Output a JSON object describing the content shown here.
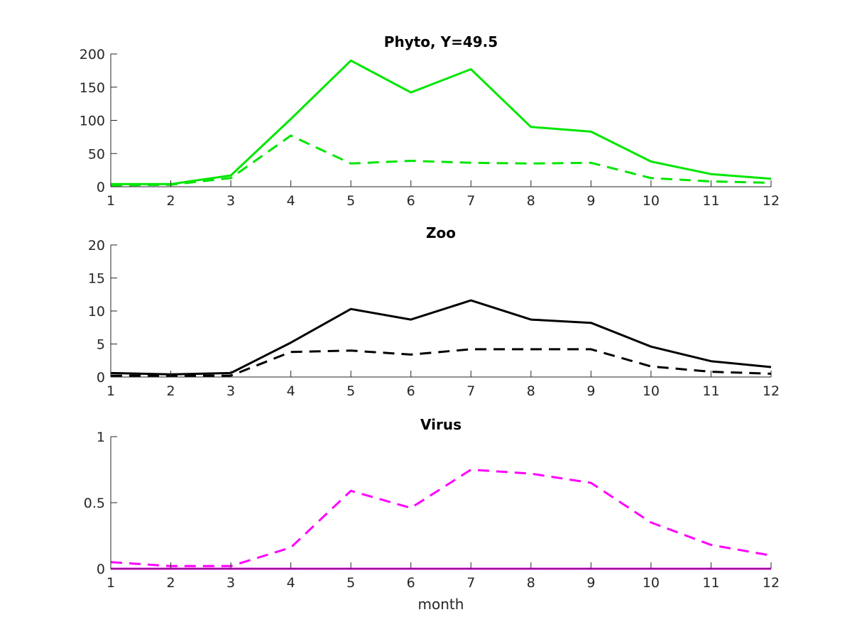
{
  "chart_data": [
    {
      "type": "line",
      "title": "Phyto, Y=49.5",
      "xlabel": "",
      "ylabel": "",
      "x": [
        1,
        2,
        3,
        4,
        5,
        6,
        7,
        8,
        9,
        10,
        11,
        12
      ],
      "xlim": [
        1,
        12
      ],
      "ylim": [
        0,
        200
      ],
      "xticks": [
        1,
        2,
        3,
        4,
        5,
        6,
        7,
        8,
        9,
        10,
        11,
        12
      ],
      "yticks": [
        0,
        50,
        100,
        150,
        200
      ],
      "ytick_labels": [
        "0",
        "50",
        "100",
        "150",
        "200"
      ],
      "grid": false,
      "series": [
        {
          "style": "solid",
          "color": "#00e600",
          "values": [
            4,
            4,
            17,
            102,
            190,
            142,
            177,
            90,
            83,
            38,
            19,
            12
          ]
        },
        {
          "style": "dashed",
          "color": "#00e600",
          "values": [
            2,
            3,
            13,
            77,
            35,
            39,
            36,
            35,
            36,
            13,
            8,
            6
          ]
        }
      ]
    },
    {
      "type": "line",
      "title": "Zoo",
      "xlabel": "",
      "ylabel": "",
      "x": [
        1,
        2,
        3,
        4,
        5,
        6,
        7,
        8,
        9,
        10,
        11,
        12
      ],
      "xlim": [
        1,
        12
      ],
      "ylim": [
        0,
        20
      ],
      "xticks": [
        1,
        2,
        3,
        4,
        5,
        6,
        7,
        8,
        9,
        10,
        11,
        12
      ],
      "yticks": [
        0,
        5,
        10,
        15,
        20
      ],
      "ytick_labels": [
        "0",
        "5",
        "10",
        "15",
        "20"
      ],
      "grid": false,
      "series": [
        {
          "style": "solid",
          "color": "#000000",
          "values": [
            0.6,
            0.4,
            0.6,
            5.2,
            10.3,
            8.7,
            11.6,
            8.7,
            8.2,
            4.6,
            2.4,
            1.5
          ]
        },
        {
          "style": "dashed",
          "color": "#000000",
          "values": [
            0.2,
            0.2,
            0.2,
            3.8,
            4.0,
            3.4,
            4.2,
            4.2,
            4.2,
            1.6,
            0.8,
            0.5
          ]
        }
      ]
    },
    {
      "type": "line",
      "title": "Virus",
      "xlabel": "month",
      "ylabel": "",
      "x": [
        1,
        2,
        3,
        4,
        5,
        6,
        7,
        8,
        9,
        10,
        11,
        12
      ],
      "xlim": [
        1,
        12
      ],
      "ylim": [
        0,
        1
      ],
      "xticks": [
        1,
        2,
        3,
        4,
        5,
        6,
        7,
        8,
        9,
        10,
        11,
        12
      ],
      "yticks": [
        0,
        0.5,
        1
      ],
      "ytick_labels": [
        "0",
        "0.5",
        "1"
      ],
      "grid": false,
      "series": [
        {
          "style": "solid",
          "color": "#ff00ff",
          "values": [
            0,
            0,
            0,
            0,
            0,
            0,
            0,
            0,
            0,
            0,
            0,
            0
          ]
        },
        {
          "style": "dashed",
          "color": "#ff00ff",
          "values": [
            0.05,
            0.02,
            0.02,
            0.16,
            0.59,
            0.46,
            0.75,
            0.72,
            0.65,
            0.35,
            0.18,
            0.1
          ]
        }
      ]
    }
  ]
}
